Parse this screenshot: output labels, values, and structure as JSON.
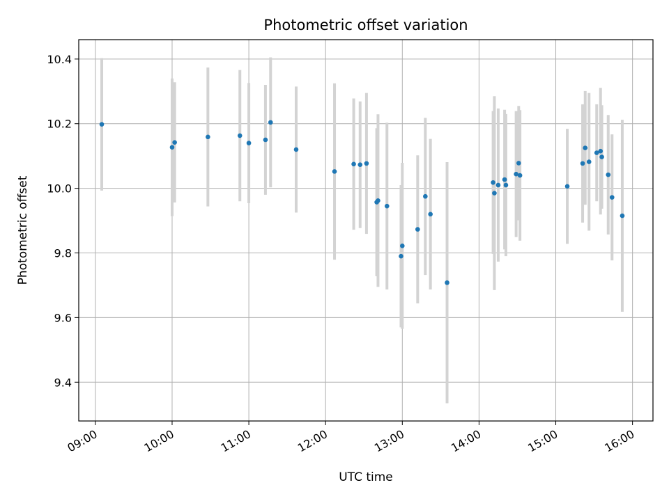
{
  "chart_data": {
    "type": "scatter",
    "title": "Photometric offset variation",
    "xlabel": "UTC time",
    "ylabel": "Photometric offset",
    "x_axis_kind": "time",
    "xlim": [
      "08:47",
      "16:16"
    ],
    "ylim": [
      9.28,
      10.46
    ],
    "x_ticks": [
      "09:00",
      "10:00",
      "11:00",
      "12:00",
      "13:00",
      "14:00",
      "15:00",
      "16:00"
    ],
    "y_ticks": [
      9.4,
      9.6,
      9.8,
      10.0,
      10.2,
      10.4
    ],
    "grid": true,
    "legend": "none",
    "colors": {
      "point": "#1f77b4",
      "errorbar": "#d3d3d3",
      "grid": "#b0b0b0"
    },
    "points": [
      {
        "x": "09:05",
        "y": 10.198,
        "err": 0.205
      },
      {
        "x": "10:00",
        "y": 10.127,
        "err": 0.213
      },
      {
        "x": "10:02",
        "y": 10.142,
        "err": 0.186
      },
      {
        "x": "10:28",
        "y": 10.159,
        "err": 0.215
      },
      {
        "x": "10:53",
        "y": 10.163,
        "err": 0.203
      },
      {
        "x": "11:00",
        "y": 10.14,
        "err": 0.186
      },
      {
        "x": "11:13",
        "y": 10.15,
        "err": 0.17
      },
      {
        "x": "11:17",
        "y": 10.204,
        "err": 0.201
      },
      {
        "x": "11:37",
        "y": 10.12,
        "err": 0.195
      },
      {
        "x": "12:07",
        "y": 10.052,
        "err": 0.273
      },
      {
        "x": "12:22",
        "y": 10.075,
        "err": 0.203
      },
      {
        "x": "12:27",
        "y": 10.073,
        "err": 0.196
      },
      {
        "x": "12:32",
        "y": 10.077,
        "err": 0.218
      },
      {
        "x": "12:40",
        "y": 9.957,
        "err": 0.229
      },
      {
        "x": "12:41",
        "y": 9.962,
        "err": 0.267
      },
      {
        "x": "12:48",
        "y": 9.945,
        "err": 0.258
      },
      {
        "x": "12:59",
        "y": 9.79,
        "err": 0.22
      },
      {
        "x": "13:00",
        "y": 9.822,
        "err": 0.257
      },
      {
        "x": "13:12",
        "y": 9.873,
        "err": 0.229
      },
      {
        "x": "13:18",
        "y": 9.975,
        "err": 0.243
      },
      {
        "x": "13:22",
        "y": 9.92,
        "err": 0.233
      },
      {
        "x": "13:35",
        "y": 9.708,
        "err": 0.373
      },
      {
        "x": "14:11",
        "y": 10.018,
        "err": 0.221
      },
      {
        "x": "14:12",
        "y": 9.985,
        "err": 0.3
      },
      {
        "x": "14:15",
        "y": 10.01,
        "err": 0.237
      },
      {
        "x": "14:20",
        "y": 10.027,
        "err": 0.216
      },
      {
        "x": "14:21",
        "y": 10.01,
        "err": 0.22
      },
      {
        "x": "14:29",
        "y": 10.044,
        "err": 0.195
      },
      {
        "x": "14:31",
        "y": 10.078,
        "err": 0.177
      },
      {
        "x": "14:32",
        "y": 10.04,
        "err": 0.202
      },
      {
        "x": "15:09",
        "y": 10.006,
        "err": 0.178
      },
      {
        "x": "15:21",
        "y": 10.077,
        "err": 0.183
      },
      {
        "x": "15:23",
        "y": 10.125,
        "err": 0.176
      },
      {
        "x": "15:26",
        "y": 10.082,
        "err": 0.213
      },
      {
        "x": "15:32",
        "y": 10.11,
        "err": 0.15
      },
      {
        "x": "15:35",
        "y": 10.115,
        "err": 0.196
      },
      {
        "x": "15:36",
        "y": 10.097,
        "err": 0.16
      },
      {
        "x": "15:41",
        "y": 10.042,
        "err": 0.185
      },
      {
        "x": "15:44",
        "y": 9.972,
        "err": 0.195
      },
      {
        "x": "15:52",
        "y": 9.915,
        "err": 0.297
      }
    ]
  }
}
